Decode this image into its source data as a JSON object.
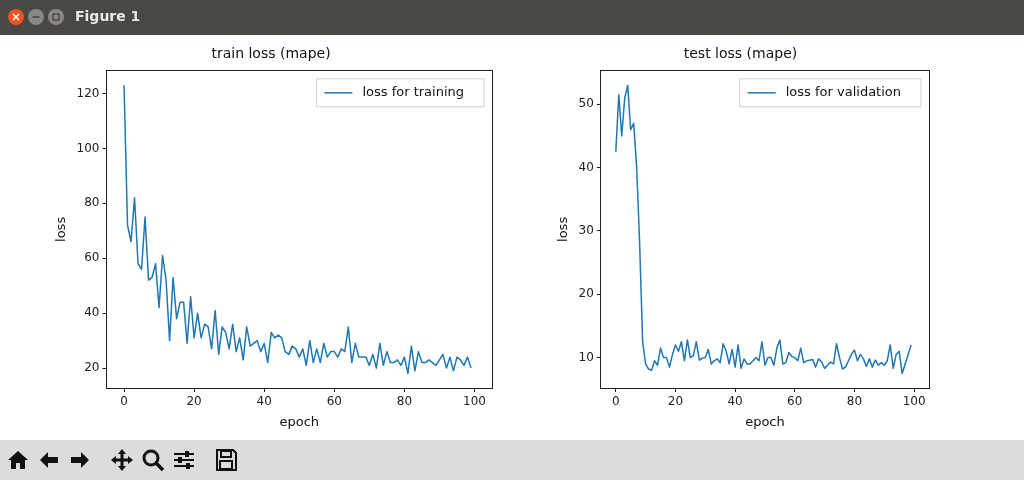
{
  "chart_data": [
    {
      "type": "line",
      "title": "train loss (mape)",
      "xlabel": "epoch",
      "ylabel": "loss",
      "annotations": [
        "Figure 1"
      ],
      "x": [
        0,
        1,
        2,
        3,
        4,
        5,
        6,
        7,
        8,
        9,
        10,
        11,
        12,
        13,
        14,
        15,
        16,
        17,
        18,
        19,
        20,
        21,
        22,
        23,
        24,
        25,
        26,
        27,
        28,
        29,
        30,
        31,
        32,
        33,
        34,
        35,
        36,
        37,
        38,
        39,
        40,
        41,
        42,
        43,
        44,
        45,
        46,
        47,
        48,
        49,
        50,
        51,
        52,
        53,
        54,
        55,
        56,
        57,
        58,
        59,
        60,
        61,
        62,
        63,
        64,
        65,
        66,
        67,
        68,
        69,
        70,
        71,
        72,
        73,
        74,
        75,
        76,
        77,
        78,
        79,
        80,
        81,
        82,
        83,
        84,
        85,
        86,
        87,
        88,
        89,
        90,
        91,
        92,
        93,
        94,
        95,
        96,
        97,
        98,
        99
      ],
      "series": [
        {
          "name": "loss for training",
          "color": "#1f77b4",
          "values": [
            123,
            72,
            66,
            82,
            58,
            56,
            75,
            52,
            53,
            58,
            42,
            61,
            52,
            30,
            53,
            38,
            44,
            44,
            29,
            46,
            31,
            40,
            31,
            36,
            35,
            27,
            41,
            25,
            35,
            33,
            27,
            36,
            26,
            31,
            23,
            35,
            28,
            29,
            30,
            26,
            29,
            22,
            33,
            31,
            32,
            31,
            26,
            25,
            28,
            27,
            24,
            27,
            21,
            30,
            22,
            27,
            22,
            29,
            24,
            26,
            26,
            24,
            27,
            26,
            35,
            22,
            29,
            24,
            24,
            24,
            21,
            25,
            20,
            29,
            21,
            26,
            22,
            22,
            23,
            21,
            24,
            18,
            28,
            19,
            26,
            22,
            22,
            23,
            22,
            21,
            23,
            25,
            20,
            24,
            19,
            24,
            23,
            21,
            24,
            20
          ]
        }
      ],
      "xlim": [
        -5,
        105
      ],
      "ylim": [
        12.75,
        128.25
      ],
      "xticks": [
        0,
        20,
        40,
        60,
        80,
        100
      ],
      "yticks": [
        20,
        40,
        60,
        80,
        100,
        120
      ],
      "grid": false,
      "legend": "top right",
      "marker": "none",
      "line_style": "solid"
    },
    {
      "type": "line",
      "title": "test loss (mape)",
      "xlabel": "epoch",
      "ylabel": "loss",
      "x": [
        0,
        1,
        2,
        3,
        4,
        5,
        6,
        7,
        8,
        9,
        10,
        11,
        12,
        13,
        14,
        15,
        16,
        17,
        18,
        19,
        20,
        21,
        22,
        23,
        24,
        25,
        26,
        27,
        28,
        29,
        30,
        31,
        32,
        33,
        34,
        35,
        36,
        37,
        38,
        39,
        40,
        41,
        42,
        43,
        44,
        45,
        46,
        47,
        48,
        49,
        50,
        51,
        52,
        53,
        54,
        55,
        56,
        57,
        58,
        59,
        60,
        61,
        62,
        63,
        64,
        65,
        66,
        67,
        68,
        69,
        70,
        71,
        72,
        73,
        74,
        75,
        76,
        77,
        78,
        79,
        80,
        81,
        82,
        83,
        84,
        85,
        86,
        87,
        88,
        89,
        90,
        91,
        92,
        93,
        94,
        95,
        96,
        97,
        98,
        99
      ],
      "series": [
        {
          "name": "loss for validation",
          "color": "#1f77b4",
          "values": [
            42.5,
            51.5,
            45,
            51,
            53,
            46,
            47,
            40,
            28,
            12.5,
            9,
            8.2,
            8,
            9.5,
            8.8,
            11.5,
            10,
            10,
            8.5,
            10.5,
            12,
            11,
            12.5,
            9.5,
            12.8,
            10,
            10.3,
            12.5,
            9.6,
            9.9,
            10,
            11.3,
            9,
            9.5,
            9.8,
            9.2,
            12.2,
            11,
            9,
            11.3,
            8.5,
            12,
            8.3,
            9.8,
            9,
            9,
            9.5,
            10,
            9.5,
            12.5,
            8.8,
            10,
            10,
            8.8,
            11.5,
            12.8,
            9,
            9.2,
            10.8,
            10.2,
            10,
            9.5,
            11.5,
            9.2,
            9.5,
            9.6,
            9.7,
            8.5,
            9.8,
            9.3,
            8.3,
            8.8,
            9.3,
            9,
            12.2,
            10,
            8.2,
            8.5,
            9.5,
            10.5,
            11.2,
            9.5,
            10.5,
            9.8,
            8.6,
            9.8,
            8.5,
            9.6,
            8.8,
            9.2,
            8.8,
            9.5,
            12,
            8.3,
            10.5,
            11,
            7.5,
            9,
            10.5,
            12
          ]
        }
      ],
      "xlim": [
        -5,
        105
      ],
      "ylim": [
        5.2,
        55.3
      ],
      "xticks": [
        0,
        20,
        40,
        60,
        80,
        100
      ],
      "yticks": [
        10,
        20,
        30,
        40,
        50
      ],
      "grid": false,
      "legend": "top right",
      "marker": "none",
      "line_style": "solid"
    }
  ]
}
